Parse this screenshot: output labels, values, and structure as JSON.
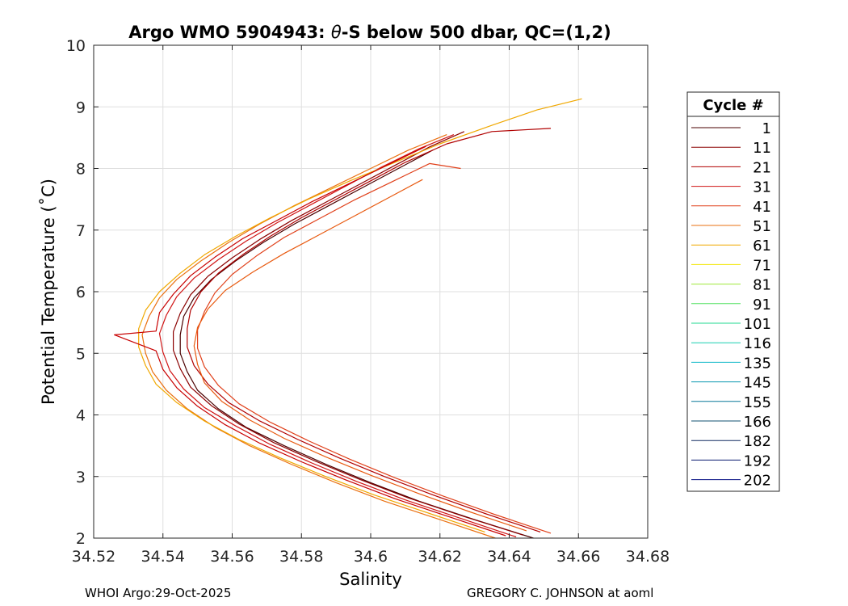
{
  "chart_data": {
    "type": "line",
    "title_prefix": "Argo WMO 5904943: ",
    "title_theta": "θ",
    "title_suffix": "-S below 500 dbar,  QC=(1,2)",
    "xlabel": "Salinity",
    "ylabel": "Potential Temperature (˚C)",
    "xlim": [
      34.52,
      34.68
    ],
    "ylim": [
      2,
      10
    ],
    "xticks": [
      {
        "value": 34.52,
        "label": "34.52"
      },
      {
        "value": 34.54,
        "label": "34.54"
      },
      {
        "value": 34.56,
        "label": "34.56"
      },
      {
        "value": 34.58,
        "label": "34.58"
      },
      {
        "value": 34.6,
        "label": "34.6"
      },
      {
        "value": 34.62,
        "label": "34.62"
      },
      {
        "value": 34.64,
        "label": "34.64"
      },
      {
        "value": 34.66,
        "label": "34.66"
      },
      {
        "value": 34.68,
        "label": "34.68"
      }
    ],
    "yticks": [
      {
        "value": 2,
        "label": "2"
      },
      {
        "value": 3,
        "label": "3"
      },
      {
        "value": 4,
        "label": "4"
      },
      {
        "value": 5,
        "label": "5"
      },
      {
        "value": 6,
        "label": "6"
      },
      {
        "value": 7,
        "label": "7"
      },
      {
        "value": 8,
        "label": "8"
      },
      {
        "value": 9,
        "label": "9"
      },
      {
        "value": 10,
        "label": "10"
      }
    ],
    "grid": true,
    "legend": {
      "title": "Cycle #",
      "placement": "outside-right",
      "entries": [
        {
          "label": "1",
          "color": "#4a0000"
        },
        {
          "label": "11",
          "color": "#8b0000"
        },
        {
          "label": "21",
          "color": "#b00000"
        },
        {
          "label": "31",
          "color": "#d01414"
        },
        {
          "label": "41",
          "color": "#e0401a"
        },
        {
          "label": "51",
          "color": "#ea7010"
        },
        {
          "label": "61",
          "color": "#f0a800"
        },
        {
          "label": "71",
          "color": "#f2e600"
        },
        {
          "label": "81",
          "color": "#9ee83a"
        },
        {
          "label": "91",
          "color": "#50e060"
        },
        {
          "label": "101",
          "color": "#20d890"
        },
        {
          "label": "116",
          "color": "#18cfb0"
        },
        {
          "label": "135",
          "color": "#10b8c8"
        },
        {
          "label": "145",
          "color": "#0a98b0"
        },
        {
          "label": "155",
          "color": "#087898"
        },
        {
          "label": "166",
          "color": "#105070"
        },
        {
          "label": "182",
          "color": "#102a60"
        },
        {
          "label": "192",
          "color": "#0a1a70"
        },
        {
          "label": "202",
          "color": "#000a80"
        }
      ]
    },
    "profiles": [
      {
        "color": "#4a0000",
        "points": [
          [
            34.647,
            2.0
          ],
          [
            34.63,
            2.3
          ],
          [
            34.614,
            2.6
          ],
          [
            34.6,
            2.9
          ],
          [
            34.587,
            3.2
          ],
          [
            34.575,
            3.5
          ],
          [
            34.564,
            3.8
          ],
          [
            34.556,
            4.1
          ],
          [
            34.55,
            4.4
          ],
          [
            34.547,
            4.7
          ],
          [
            34.545,
            5.0
          ],
          [
            34.545,
            5.3
          ],
          [
            34.546,
            5.6
          ],
          [
            34.549,
            5.9
          ],
          [
            34.554,
            6.2
          ],
          [
            34.561,
            6.5
          ],
          [
            34.569,
            6.8
          ],
          [
            34.578,
            7.1
          ],
          [
            34.588,
            7.4
          ],
          [
            34.598,
            7.7
          ],
          [
            34.608,
            8.0
          ],
          [
            34.618,
            8.3
          ]
        ]
      },
      {
        "color": "#8b0000",
        "points": [
          [
            34.644,
            2.05
          ],
          [
            34.627,
            2.35
          ],
          [
            34.611,
            2.65
          ],
          [
            34.597,
            2.95
          ],
          [
            34.584,
            3.25
          ],
          [
            34.572,
            3.55
          ],
          [
            34.562,
            3.85
          ],
          [
            34.554,
            4.15
          ],
          [
            34.548,
            4.45
          ],
          [
            34.545,
            4.75
          ],
          [
            34.543,
            5.05
          ],
          [
            34.543,
            5.35
          ],
          [
            34.545,
            5.65
          ],
          [
            34.548,
            5.95
          ],
          [
            34.553,
            6.25
          ],
          [
            34.56,
            6.55
          ],
          [
            34.568,
            6.85
          ],
          [
            34.577,
            7.15
          ],
          [
            34.587,
            7.45
          ],
          [
            34.597,
            7.75
          ],
          [
            34.607,
            8.05
          ],
          [
            34.617,
            8.35
          ],
          [
            34.627,
            8.6
          ]
        ]
      },
      {
        "color": "#b00000",
        "points": [
          [
            34.649,
            2.1
          ],
          [
            34.633,
            2.4
          ],
          [
            34.618,
            2.7
          ],
          [
            34.604,
            3.0
          ],
          [
            34.591,
            3.3
          ],
          [
            34.579,
            3.6
          ],
          [
            34.568,
            3.9
          ],
          [
            34.559,
            4.2
          ],
          [
            34.553,
            4.5
          ],
          [
            34.549,
            4.8
          ],
          [
            34.547,
            5.1
          ],
          [
            34.547,
            5.4
          ],
          [
            34.548,
            5.7
          ],
          [
            34.551,
            6.0
          ],
          [
            34.556,
            6.3
          ],
          [
            34.563,
            6.6
          ],
          [
            34.571,
            6.9
          ],
          [
            34.58,
            7.2
          ],
          [
            34.59,
            7.5
          ],
          [
            34.6,
            7.8
          ],
          [
            34.61,
            8.1
          ],
          [
            34.622,
            8.4
          ],
          [
            34.635,
            8.6
          ],
          [
            34.652,
            8.65
          ]
        ]
      },
      {
        "color": "#d01414",
        "points": [
          [
            34.642,
            2.02
          ],
          [
            34.626,
            2.32
          ],
          [
            34.61,
            2.62
          ],
          [
            34.596,
            2.92
          ],
          [
            34.583,
            3.22
          ],
          [
            34.571,
            3.52
          ],
          [
            34.561,
            3.82
          ],
          [
            34.552,
            4.12
          ],
          [
            34.546,
            4.42
          ],
          [
            34.542,
            4.72
          ],
          [
            34.54,
            5.02
          ],
          [
            34.539,
            5.32
          ],
          [
            34.541,
            5.62
          ],
          [
            34.544,
            5.92
          ],
          [
            34.549,
            6.22
          ],
          [
            34.556,
            6.52
          ],
          [
            34.564,
            6.82
          ],
          [
            34.573,
            7.12
          ],
          [
            34.583,
            7.42
          ],
          [
            34.593,
            7.72
          ],
          [
            34.603,
            8.02
          ],
          [
            34.614,
            8.32
          ],
          [
            34.624,
            8.55
          ]
        ]
      },
      {
        "color": "#e0401a",
        "points": [
          [
            34.652,
            2.08
          ],
          [
            34.636,
            2.38
          ],
          [
            34.621,
            2.68
          ],
          [
            34.607,
            2.98
          ],
          [
            34.594,
            3.28
          ],
          [
            34.582,
            3.58
          ],
          [
            34.571,
            3.88
          ],
          [
            34.562,
            4.18
          ],
          [
            34.556,
            4.48
          ],
          [
            34.552,
            4.78
          ],
          [
            34.55,
            5.08
          ],
          [
            34.55,
            5.38
          ],
          [
            34.552,
            5.68
          ],
          [
            34.555,
            5.98
          ],
          [
            34.56,
            6.28
          ],
          [
            34.567,
            6.58
          ],
          [
            34.575,
            6.88
          ],
          [
            34.585,
            7.18
          ],
          [
            34.595,
            7.48
          ],
          [
            34.606,
            7.78
          ],
          [
            34.617,
            8.08
          ],
          [
            34.626,
            8.0
          ]
        ]
      },
      {
        "color": "#ea7010",
        "points": [
          [
            34.636,
            2.0
          ],
          [
            34.62,
            2.3
          ],
          [
            34.604,
            2.6
          ],
          [
            34.59,
            2.9
          ],
          [
            34.577,
            3.2
          ],
          [
            34.565,
            3.5
          ],
          [
            34.555,
            3.8
          ],
          [
            34.547,
            4.1
          ],
          [
            34.541,
            4.4
          ],
          [
            34.537,
            4.7
          ],
          [
            34.535,
            5.0
          ],
          [
            34.534,
            5.3
          ],
          [
            34.536,
            5.6
          ],
          [
            34.539,
            5.9
          ],
          [
            34.544,
            6.2
          ],
          [
            34.551,
            6.5
          ],
          [
            34.559,
            6.8
          ],
          [
            34.568,
            7.1
          ],
          [
            34.578,
            7.4
          ],
          [
            34.589,
            7.7
          ],
          [
            34.6,
            8.0
          ],
          [
            34.611,
            8.3
          ],
          [
            34.622,
            8.55
          ]
        ]
      },
      {
        "color": "#f0a800",
        "points": [
          [
            34.633,
            2.1
          ],
          [
            34.617,
            2.4
          ],
          [
            34.601,
            2.7
          ],
          [
            34.587,
            3.0
          ],
          [
            34.574,
            3.3
          ],
          [
            34.562,
            3.6
          ],
          [
            34.552,
            3.9
          ],
          [
            34.544,
            4.2
          ],
          [
            34.538,
            4.5
          ],
          [
            34.535,
            4.8
          ],
          [
            34.533,
            5.1
          ],
          [
            34.533,
            5.4
          ],
          [
            34.535,
            5.7
          ],
          [
            34.539,
            6.0
          ],
          [
            34.545,
            6.3
          ],
          [
            34.552,
            6.6
          ],
          [
            34.561,
            6.9
          ],
          [
            34.571,
            7.2
          ],
          [
            34.582,
            7.5
          ],
          [
            34.594,
            7.8
          ],
          [
            34.607,
            8.1
          ],
          [
            34.62,
            8.4
          ],
          [
            34.635,
            8.7
          ],
          [
            34.648,
            8.95
          ],
          [
            34.661,
            9.13
          ]
        ]
      },
      {
        "color": "#c80000",
        "points": [
          [
            34.639,
            2.04
          ],
          [
            34.623,
            2.34
          ],
          [
            34.607,
            2.64
          ],
          [
            34.593,
            2.94
          ],
          [
            34.58,
            3.24
          ],
          [
            34.568,
            3.54
          ],
          [
            34.558,
            3.84
          ],
          [
            34.55,
            4.14
          ],
          [
            34.544,
            4.44
          ],
          [
            34.54,
            4.74
          ],
          [
            34.538,
            5.04
          ],
          [
            34.526,
            5.3
          ],
          [
            34.538,
            5.36
          ],
          [
            34.539,
            5.66
          ],
          [
            34.543,
            5.96
          ],
          [
            34.548,
            6.26
          ],
          [
            34.555,
            6.56
          ],
          [
            34.563,
            6.86
          ],
          [
            34.573,
            7.16
          ],
          [
            34.583,
            7.46
          ],
          [
            34.594,
            7.76
          ],
          [
            34.605,
            8.06
          ],
          [
            34.616,
            8.36
          ]
        ]
      },
      {
        "color": "#e85a10",
        "points": [
          [
            34.645,
            2.12
          ],
          [
            34.629,
            2.42
          ],
          [
            34.614,
            2.72
          ],
          [
            34.6,
            3.02
          ],
          [
            34.587,
            3.32
          ],
          [
            34.575,
            3.62
          ],
          [
            34.565,
            3.92
          ],
          [
            34.557,
            4.22
          ],
          [
            34.552,
            4.52
          ],
          [
            34.55,
            4.82
          ],
          [
            34.549,
            5.12
          ],
          [
            34.55,
            5.42
          ],
          [
            34.553,
            5.72
          ],
          [
            34.558,
            6.02
          ],
          [
            34.566,
            6.32
          ],
          [
            34.575,
            6.62
          ],
          [
            34.585,
            6.92
          ],
          [
            34.595,
            7.22
          ],
          [
            34.605,
            7.52
          ],
          [
            34.615,
            7.82
          ]
        ]
      }
    ]
  },
  "footer": {
    "left": "WHOI Argo:29-Oct-2025",
    "right": "GREGORY C. JOHNSON at aoml"
  }
}
